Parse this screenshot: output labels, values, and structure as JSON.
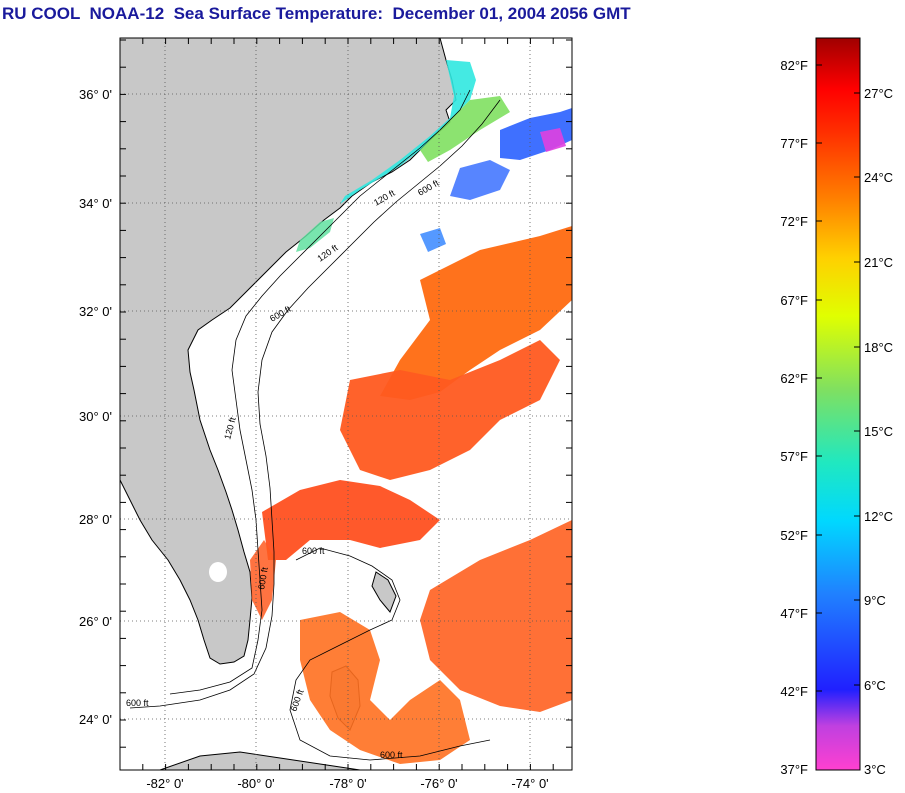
{
  "title": "RU COOL  NOAA-12  Sea Surface Temperature:  December 01, 2004 2056 GMT",
  "map": {
    "lat_ticks": [
      "36° 0'",
      "34° 0'",
      "32° 0'",
      "30° 0'",
      "28° 0'",
      "26° 0'",
      "24° 0'"
    ],
    "lon_ticks": [
      "-82° 0'",
      "-80° 0'",
      "-78° 0'",
      "-76° 0'",
      "-74° 0'"
    ],
    "contour_labels": [
      "120 ft",
      "600 ft",
      "120 ft",
      "600 ft",
      "120 ft",
      "600 ft",
      "600 ft",
      "600 ft",
      "600 ft",
      "600 ft"
    ]
  },
  "colorbar": {
    "fahrenheit": [
      "82°F",
      "77°F",
      "72°F",
      "67°F",
      "62°F",
      "57°F",
      "52°F",
      "47°F",
      "42°F",
      "37°F"
    ],
    "celsius": [
      "27°C",
      "24°C",
      "21°C",
      "18°C",
      "15°C",
      "12°C",
      "9°C",
      "6°C",
      "3°C"
    ],
    "colors": [
      "#ff40d0",
      "#a040e0",
      "#2020ff",
      "#2080ff",
      "#00d8ff",
      "#20e8c0",
      "#80e060",
      "#e0ff00",
      "#ffd000",
      "#ff8000",
      "#ff3000",
      "#ff0000",
      "#a00000"
    ]
  }
}
